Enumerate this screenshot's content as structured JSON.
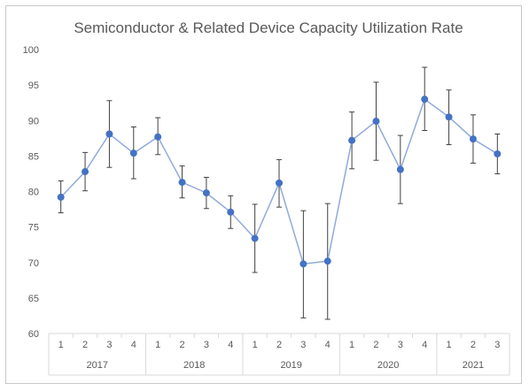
{
  "chart_data": {
    "type": "line",
    "title": "Semiconductor & Related Device Capacity Utilization Rate",
    "xlabel": "",
    "ylabel": "",
    "ylim": [
      60,
      100
    ],
    "yticks": [
      60,
      65,
      70,
      75,
      80,
      85,
      90,
      95,
      100
    ],
    "grid": false,
    "legend": "none",
    "categories": [
      "1",
      "2",
      "3",
      "4",
      "1",
      "2",
      "3",
      "4",
      "1",
      "2",
      "3",
      "4",
      "1",
      "2",
      "3",
      "4",
      "1",
      "2",
      "3"
    ],
    "groups": [
      {
        "label": "2017",
        "count": 4
      },
      {
        "label": "2018",
        "count": 4
      },
      {
        "label": "2019",
        "count": 4
      },
      {
        "label": "2020",
        "count": 4
      },
      {
        "label": "2021",
        "count": 3
      }
    ],
    "series": [
      {
        "values": [
          79.2,
          82.8,
          88.1,
          85.4,
          87.7,
          81.3,
          79.8,
          77.1,
          73.4,
          81.2,
          69.8,
          70.2,
          87.2,
          89.9,
          83.1,
          93.0,
          90.5,
          87.4,
          85.3
        ],
        "err_low": [
          77.0,
          80.1,
          83.4,
          81.8,
          85.2,
          79.1,
          77.6,
          74.8,
          68.6,
          77.8,
          62.2,
          62.0,
          83.2,
          84.4,
          78.3,
          88.6,
          86.6,
          84.0,
          82.5
        ],
        "err_high": [
          81.5,
          85.5,
          92.8,
          89.1,
          90.4,
          83.6,
          82.0,
          79.4,
          78.2,
          84.5,
          77.3,
          78.3,
          91.2,
          95.4,
          87.9,
          97.5,
          94.3,
          90.8,
          88.1
        ],
        "color": "#4472c4"
      }
    ]
  }
}
